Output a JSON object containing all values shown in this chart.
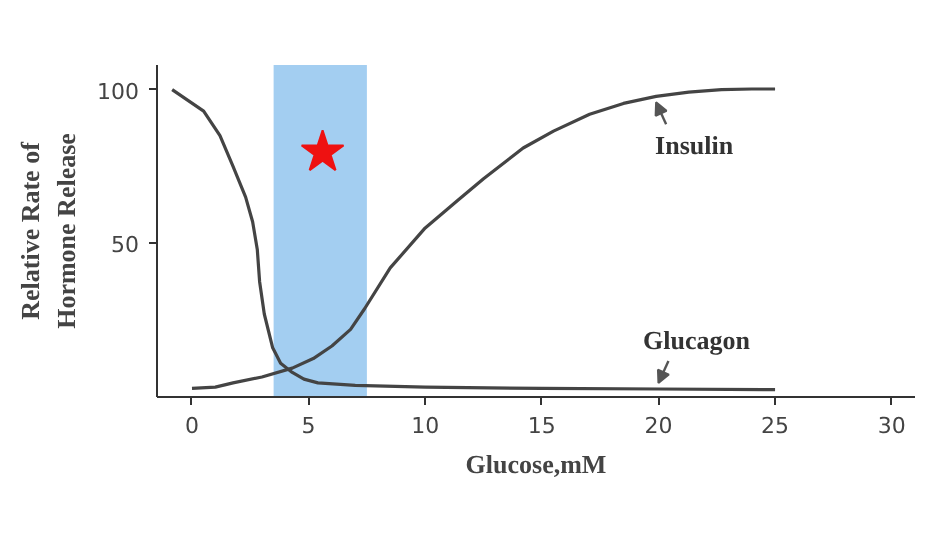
{
  "chart_data": {
    "type": "line",
    "xlabel": "Glucose,mM",
    "ylabel": "Relative Rate of\nHormone Release",
    "xlim": [
      -1.5,
      31
    ],
    "ylim": [
      0,
      108
    ],
    "xticks": [
      0,
      5,
      10,
      15,
      20,
      25,
      30
    ],
    "yticks": [
      50,
      100
    ],
    "grid": false,
    "marker": "none",
    "line_style": "solid",
    "series": [
      {
        "name": "Glucagon",
        "color": "#444444",
        "x": [
          -0.85,
          0.5,
          1.2,
          1.76,
          2.3,
          2.6,
          2.8,
          2.9,
          3.1,
          3.46,
          3.8,
          4.3,
          4.8,
          5.4,
          7,
          10,
          15,
          20,
          25
        ],
        "values": [
          100,
          93,
          85,
          75,
          65,
          57,
          48,
          37.5,
          27,
          16,
          11,
          8,
          5.8,
          4.6,
          3.8,
          3.2,
          2.8,
          2.6,
          2.4
        ]
      },
      {
        "name": "Insulin",
        "color": "#444444",
        "x": [
          0,
          1,
          1.76,
          3,
          4.3,
          5.2,
          6,
          6.8,
          7.4,
          8.5,
          10,
          11.4,
          12.5,
          14.2,
          15.5,
          17.05,
          18.5,
          19.9,
          21.3,
          22.7,
          24,
          25
        ],
        "values": [
          2.8,
          3.2,
          4.6,
          6.5,
          9.4,
          12.5,
          16.6,
          22,
          28.7,
          42,
          55,
          64,
          71,
          81,
          86.5,
          92,
          95.5,
          97.8,
          99.2,
          100,
          100.2,
          100.2
        ]
      },
      {
        "type": "scatter",
        "marker": "star",
        "color": "#ee1111",
        "x": [
          5.6
        ],
        "values": [
          79.6
        ]
      }
    ],
    "bands": [
      {
        "axis": "x",
        "from": 3.5,
        "to": 7.5,
        "color": "#8cc2ee"
      }
    ]
  }
}
